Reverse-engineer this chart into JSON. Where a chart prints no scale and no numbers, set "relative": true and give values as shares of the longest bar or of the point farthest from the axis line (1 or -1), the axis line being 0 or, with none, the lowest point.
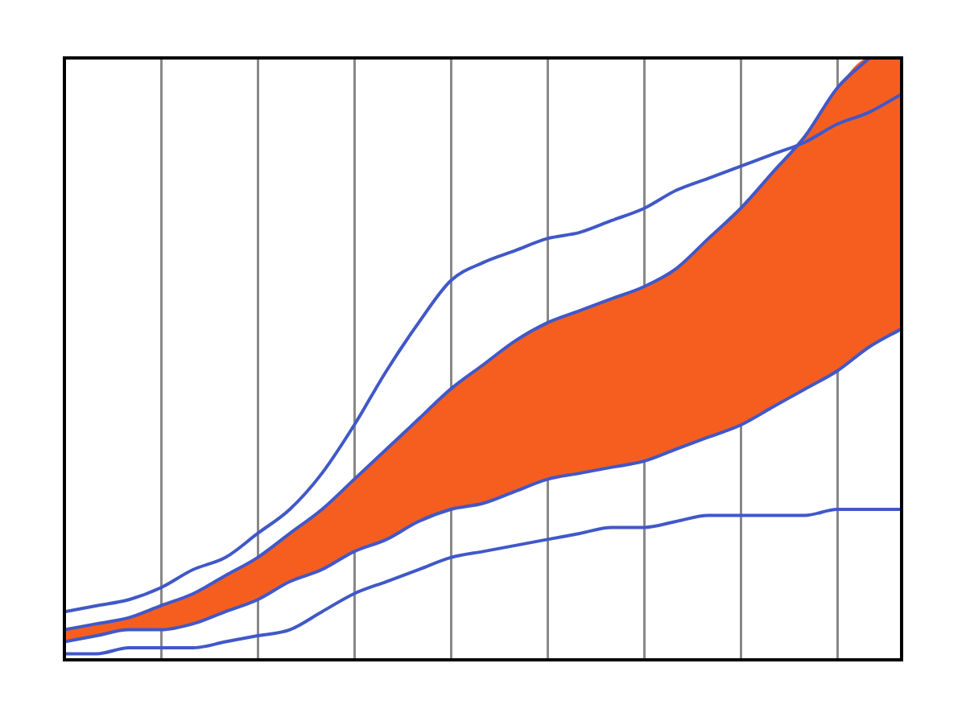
{
  "chart_data": {
    "type": "line",
    "relative": true,
    "grid": "x",
    "legend": false,
    "marker": "none",
    "line_style": "solid",
    "categories": [
      null,
      null,
      null,
      null,
      null,
      null,
      null,
      null,
      null,
      null,
      null,
      null,
      null,
      null,
      null,
      null,
      null,
      null,
      null,
      null,
      null,
      null,
      null,
      null,
      null,
      null,
      null
    ],
    "series": [
      {
        "type": "line",
        "color": "#4058c8",
        "values": [
          0.01,
          0.01,
          0.02,
          0.02,
          0.02,
          0.03,
          0.04,
          0.05,
          0.08,
          0.11,
          0.13,
          0.15,
          0.17,
          0.18,
          0.19,
          0.2,
          0.21,
          0.22,
          0.22,
          0.23,
          0.24,
          0.24,
          0.24,
          0.24,
          0.25,
          0.25,
          0.25
        ]
      },
      {
        "type": "line",
        "color": "#4058c8",
        "values": [
          0.03,
          0.04,
          0.05,
          0.05,
          0.06,
          0.08,
          0.1,
          0.13,
          0.15,
          0.18,
          0.2,
          0.23,
          0.25,
          0.26,
          0.28,
          0.3,
          0.31,
          0.32,
          0.33,
          0.35,
          0.37,
          0.39,
          0.42,
          0.45,
          0.48,
          0.52,
          0.55
        ]
      },
      {
        "type": "area",
        "color": "#f65e20",
        "values": [
          0.05,
          0.06,
          0.07,
          0.09,
          0.11,
          0.14,
          0.17,
          0.21,
          0.25,
          0.3,
          0.35,
          0.4,
          0.45,
          0.49,
          0.53,
          0.56,
          0.58,
          0.6,
          0.62,
          0.65,
          0.7,
          0.75,
          0.81,
          0.87,
          0.95,
          1,
          1
        ]
      },
      {
        "type": "line",
        "color": "#4058c8",
        "values": [
          0.05,
          0.06,
          0.07,
          0.09,
          0.11,
          0.14,
          0.17,
          0.21,
          0.25,
          0.3,
          0.35,
          0.4,
          0.45,
          0.49,
          0.53,
          0.56,
          0.58,
          0.6,
          0.62,
          0.65,
          0.7,
          0.75,
          0.81,
          0.87,
          0.95,
          1,
          null
        ]
      },
      {
        "type": "line",
        "color": "#4058c8",
        "values": [
          0.08,
          0.09,
          0.1,
          0.12,
          0.15,
          0.17,
          0.21,
          0.25,
          0.31,
          0.39,
          0.48,
          0.56,
          0.63,
          0.66,
          0.68,
          0.7,
          0.71,
          0.73,
          0.75,
          0.78,
          0.8,
          0.82,
          0.84,
          0.86,
          0.89,
          0.91,
          0.94
        ]
      }
    ]
  }
}
